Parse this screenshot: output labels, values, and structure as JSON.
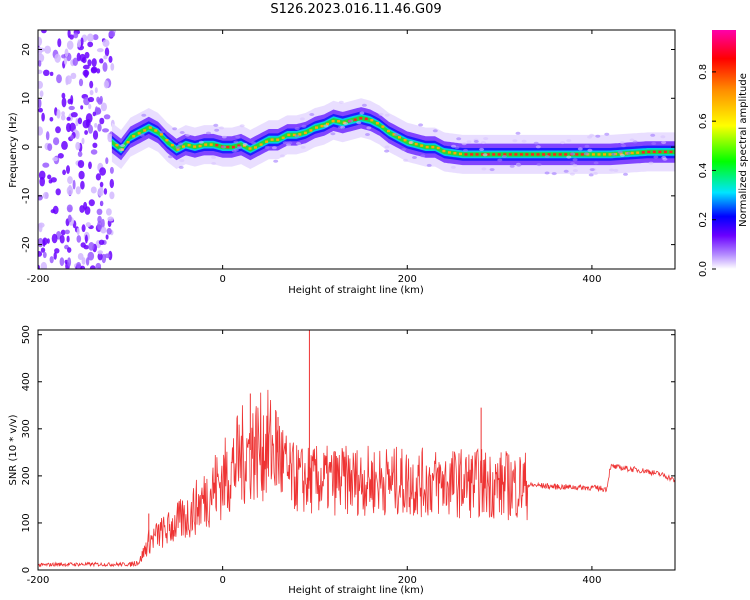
{
  "figure_title": "S126.2023.016.11.46.G09",
  "chart_data": [
    {
      "type": "heatmap",
      "name": "spectrogram",
      "xlabel": "Height of straight line (km)",
      "ylabel": "Frequency (Hz)",
      "xlim": [
        -200,
        490
      ],
      "ylim": [
        -25,
        24
      ],
      "xticks": [
        -200,
        0,
        200,
        400
      ],
      "yticks": [
        20,
        10,
        0,
        -10,
        -20
      ],
      "grid": false,
      "noise_region_x": [
        -200,
        -118
      ],
      "ridge": {
        "x": [
          -120,
          -110,
          -100,
          -90,
          -80,
          -70,
          -60,
          -50,
          -40,
          -30,
          -20,
          -10,
          0,
          10,
          20,
          30,
          40,
          50,
          60,
          70,
          80,
          90,
          100,
          110,
          120,
          130,
          140,
          150,
          160,
          170,
          180,
          190,
          200,
          210,
          220,
          230,
          240,
          260,
          300,
          340,
          380,
          420,
          460,
          490
        ],
        "frequency_hz": [
          1.0,
          -0.5,
          2.0,
          3.0,
          4.0,
          3.0,
          1.0,
          -0.5,
          0.5,
          0.0,
          0.5,
          0.5,
          0.0,
          0.0,
          0.5,
          -0.5,
          0.5,
          1.5,
          1.5,
          2.5,
          2.5,
          3.0,
          4.0,
          4.5,
          5.5,
          5.0,
          5.5,
          6.0,
          5.5,
          4.5,
          3.0,
          2.0,
          1.0,
          0.5,
          0.0,
          0.0,
          -1.0,
          -1.5,
          -1.5,
          -1.5,
          -1.5,
          -1.5,
          -1.0,
          -1.0
        ]
      },
      "colorbar": {
        "label": "Normalized spectral amplitude",
        "range": [
          0,
          1
        ],
        "ticks": [
          "0.0",
          "0.2",
          "0.4",
          "0.6",
          "0.8"
        ],
        "colors": [
          "#ffffff",
          "#b48cff",
          "#6a00ff",
          "#0000ff",
          "#00e5ff",
          "#00ff00",
          "#ffff00",
          "#ff8c00",
          "#ff0000",
          "#ff00aa"
        ]
      }
    },
    {
      "type": "line",
      "name": "snr",
      "xlabel": "Height of straight line (km)",
      "ylabel": "SNR (10 * v/v)",
      "xlim": [
        -200,
        490
      ],
      "ylim": [
        0,
        510
      ],
      "xticks": [
        -200,
        0,
        200,
        400
      ],
      "yticks": [
        0,
        100,
        200,
        300,
        400,
        500
      ],
      "grid": false,
      "color": "#ee3333",
      "series": [
        {
          "x": [
            -200,
            -180,
            -160,
            -140,
            -120,
            -100,
            -90,
            -85,
            -80,
            -70,
            -60,
            -50,
            -40,
            -30,
            -20,
            -10,
            0,
            10,
            20,
            30,
            40,
            50,
            60,
            70,
            80,
            90,
            100,
            120,
            140,
            160,
            180,
            200,
            220,
            240,
            260,
            280,
            300,
            320,
            330,
            340,
            360,
            380,
            400,
            416,
            420,
            440,
            460,
            480,
            490
          ],
          "y": [
            10,
            12,
            12,
            12,
            12,
            12,
            18,
            40,
            60,
            75,
            85,
            100,
            110,
            130,
            150,
            175,
            190,
            215,
            240,
            255,
            260,
            265,
            250,
            200,
            195,
            190,
            190,
            190,
            190,
            190,
            190,
            185,
            185,
            185,
            185,
            185,
            180,
            180,
            180,
            180,
            177,
            176,
            175,
            172,
            220,
            215,
            210,
            200,
            190
          ]
        }
      ],
      "spikes": [
        {
          "x": -80,
          "y": 120
        },
        {
          "x": 30,
          "y": 375
        },
        {
          "x": 60,
          "y": 325
        },
        {
          "x": 94,
          "y": 510
        },
        {
          "x": 280,
          "y": 345
        }
      ]
    }
  ]
}
